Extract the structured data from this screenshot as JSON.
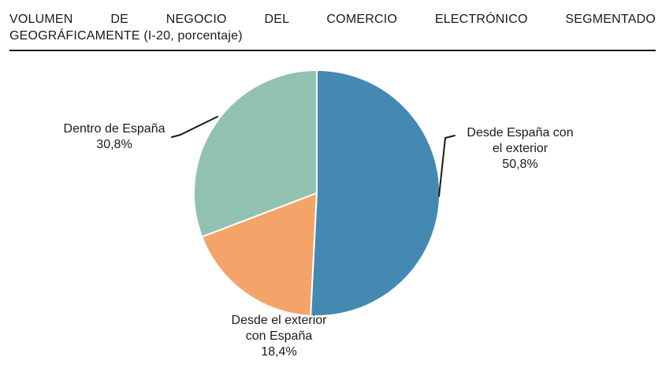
{
  "header": {
    "title_line1": "VOLUMEN DE NEGOCIO DEL COMERCIO ELECTRÓNICO SEGMENTADO",
    "title_line2": "GEOGRÁFICAMENTE (I-20, porcentaje)"
  },
  "chart_data": {
    "type": "pie",
    "title": "VOLUMEN DE NEGOCIO DEL COMERCIO ELECTRÓNICO SEGMENTADO GEOGRÁFICAMENTE",
    "subtitle": "(I-20, porcentaje)",
    "legend_position": "none",
    "labels_outside": true,
    "start_angle_deg": 0,
    "direction": "clockwise",
    "slices": [
      {
        "label": "Desde España con el exterior",
        "label_lines": [
          "Desde España con",
          "el exterior"
        ],
        "value": 50.8,
        "pct_display": "50,8%",
        "color": "#4489b2"
      },
      {
        "label": "Desde el exterior con España",
        "label_lines": [
          "Desde el exterior",
          "con España"
        ],
        "value": 18.4,
        "pct_display": "18,4%",
        "color": "#f4a469"
      },
      {
        "label": "Dentro de España",
        "label_lines": [
          "Dentro de España"
        ],
        "value": 30.8,
        "pct_display": "30,8%",
        "color": "#91c1b1"
      }
    ],
    "colors": {
      "slice_divider": "#ffffff",
      "leader_line": "#1a1a1a",
      "text": "#1a1a1a"
    }
  }
}
